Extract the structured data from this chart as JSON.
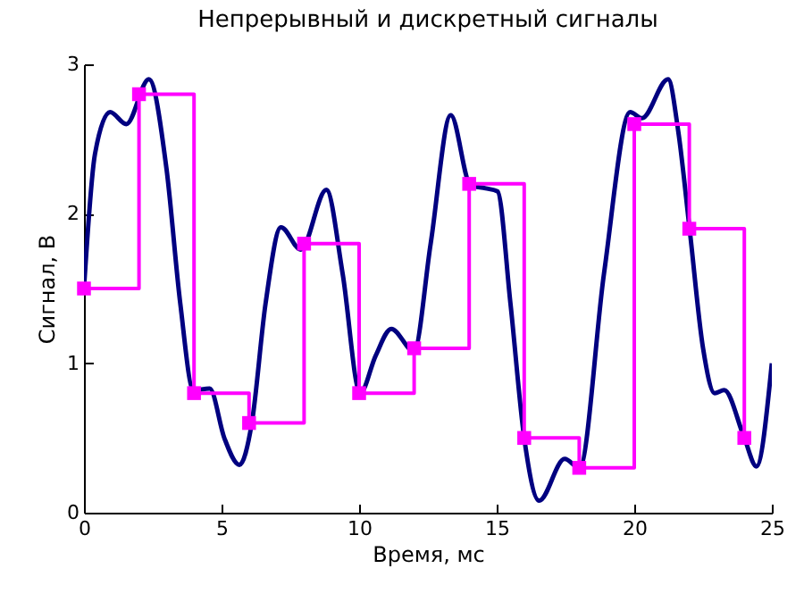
{
  "chart_data": {
    "type": "line",
    "title": "Непрерывный и дискретный сигналы",
    "xlabel": "Время, мс",
    "ylabel": "Сигнал, В",
    "xlim": [
      0,
      25
    ],
    "xticks": [
      0,
      5,
      10,
      15,
      20,
      25
    ],
    "ylim": [
      0,
      3
    ],
    "yticks": [
      0,
      1,
      2,
      3
    ],
    "grid": false,
    "line_style": "solid",
    "series": [
      {
        "color": "#000080",
        "marker": "none",
        "x": [
          0,
          0.4,
          0.95,
          1.54,
          2.36,
          3.0,
          3.5,
          3.98,
          4.57,
          5.1,
          5.65,
          6.1,
          6.6,
          7.16,
          7.88,
          8.81,
          9.4,
          10.04,
          10.6,
          11.17,
          11.99,
          12.6,
          13.33,
          14.05,
          14.6,
          15.03,
          15.5,
          16.0,
          16.54,
          17.47,
          18.01,
          18.9,
          19.85,
          20.28,
          21.23,
          21.6,
          22.01,
          22.5,
          22.92,
          23.27,
          24.0,
          24.44,
          25.0
        ],
        "values": [
          1.5,
          2.4,
          2.68,
          2.6,
          2.9,
          2.3,
          1.4,
          0.82,
          0.83,
          0.5,
          0.32,
          0.6,
          1.4,
          1.91,
          1.76,
          2.16,
          1.6,
          0.8,
          1.05,
          1.23,
          1.08,
          1.8,
          2.66,
          2.19,
          2.17,
          2.15,
          1.4,
          0.5,
          0.08,
          0.36,
          0.3,
          1.6,
          2.68,
          2.64,
          2.9,
          2.55,
          1.9,
          1.1,
          0.8,
          0.82,
          0.5,
          0.31,
          1.0
        ]
      },
      {
        "type": "step",
        "color": "#ff00ff",
        "marker": "square",
        "x": [
          0,
          2,
          4,
          6,
          8,
          10,
          12,
          14,
          16,
          18,
          20,
          22,
          24
        ],
        "values": [
          1.5,
          2.8,
          0.8,
          0.6,
          1.8,
          0.8,
          1.1,
          2.2,
          0.5,
          0.3,
          2.6,
          1.9,
          0.5
        ]
      }
    ]
  }
}
